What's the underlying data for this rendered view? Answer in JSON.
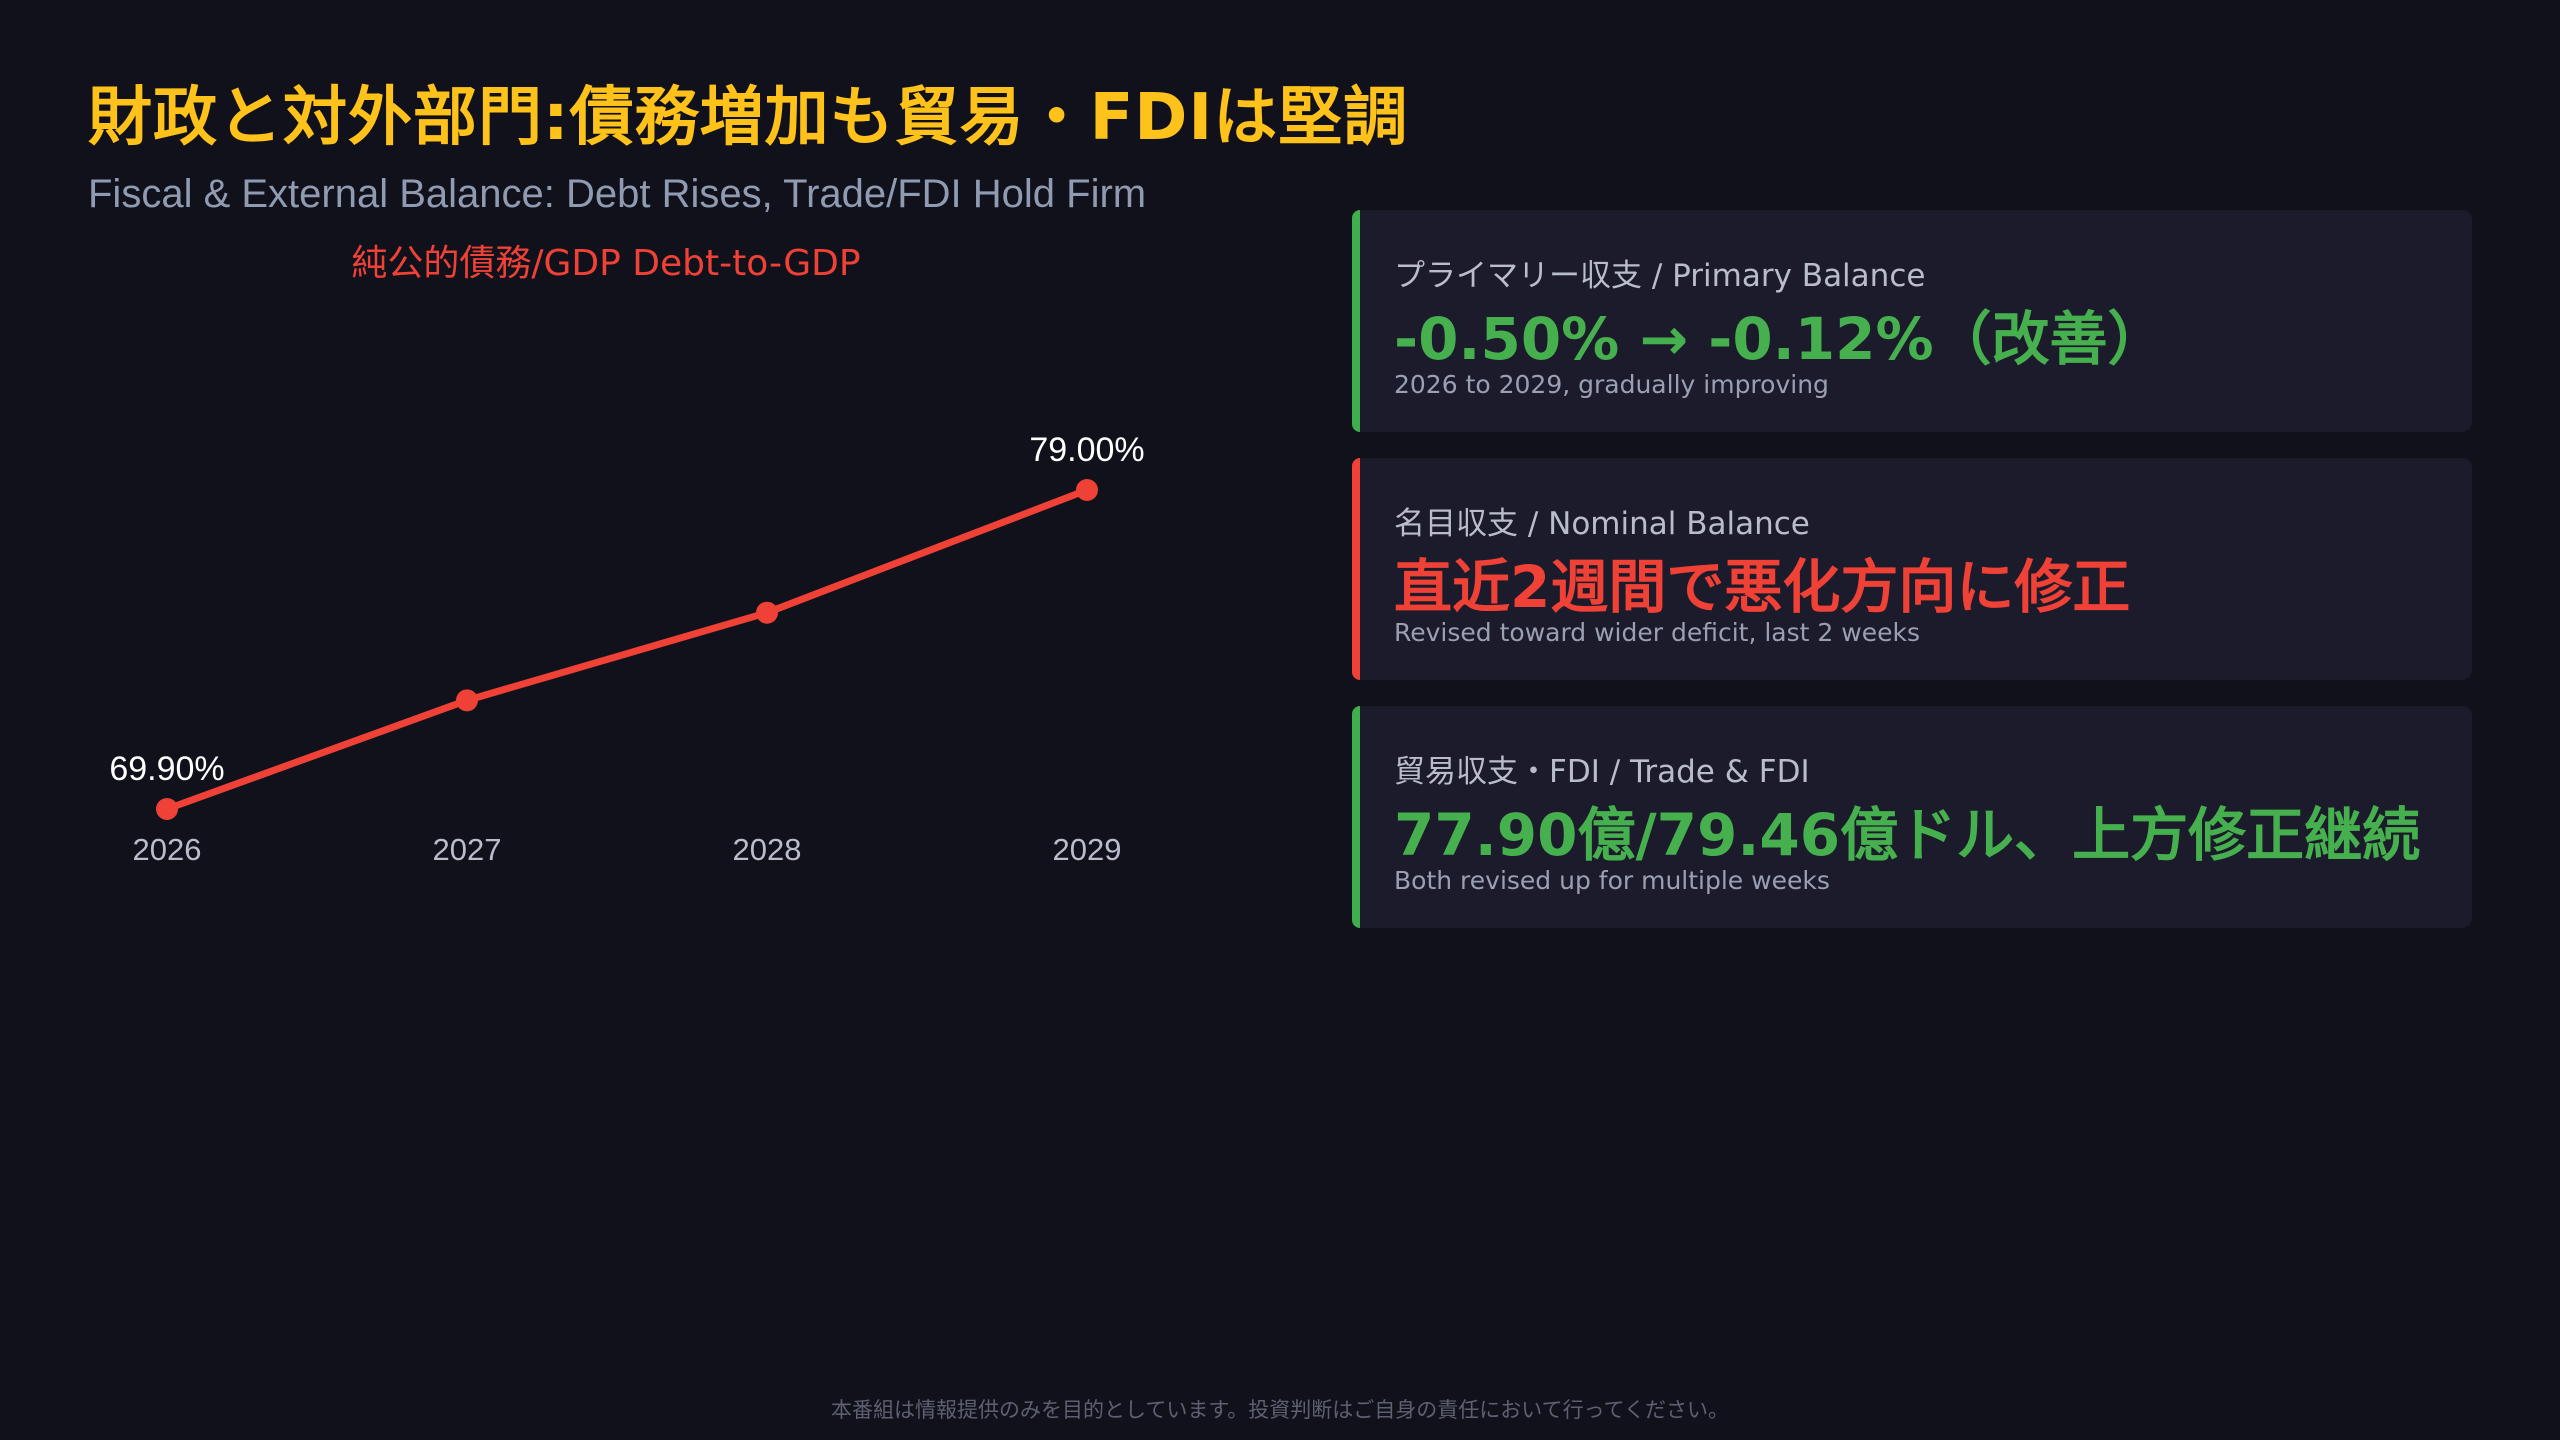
{
  "header": {
    "title": "財政と対外部門:債務増加も貿易・FDIは堅調",
    "subtitle": "Fiscal & External Balance: Debt Rises, Trade/FDI Hold Firm"
  },
  "chart_data": {
    "type": "line",
    "title": "純公的債務/GDP Debt-to-GDP",
    "categories": [
      "2026",
      "2027",
      "2028",
      "2029"
    ],
    "series": [
      {
        "values": [
          69.9,
          73.0,
          75.5,
          79.0
        ],
        "color": "#ef4136"
      }
    ],
    "data_labels": [
      {
        "index": 0,
        "text": "69.90%"
      },
      {
        "index": 3,
        "text": "79.00%"
      }
    ],
    "grid": false
  },
  "cards": [
    {
      "label": "プライマリー収支 / Primary Balance",
      "value": "-0.50% → -0.12%（改善）",
      "note": "2026 to 2029, gradually improving",
      "accent": "#46b04e"
    },
    {
      "label": "名目収支 / Nominal Balance",
      "value": "直近2週間で悪化方向に修正",
      "note": "Revised toward wider deficit, last 2 weeks",
      "accent": "#ef4136"
    },
    {
      "label": "貿易収支・FDI / Trade & FDI",
      "value": "77.90億/79.46億ドル、上方修正継続",
      "note": "Both revised up for multiple weeks",
      "accent": "#46b04e"
    }
  ],
  "footer": {
    "disclaimer": "本番組は情報提供のみを目的としています。投資判断はご自身の責任において行ってください。"
  }
}
